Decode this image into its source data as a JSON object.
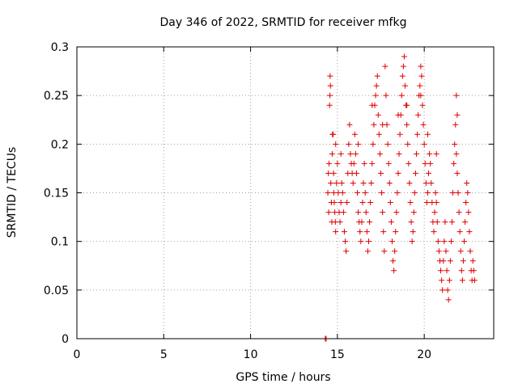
{
  "colors": {
    "series": "#e00000",
    "axis": "#000000",
    "grid": "#a0a0a0"
  },
  "chart_data": {
    "type": "scatter",
    "title": "Day 346 of 2022, SRMTID for receiver mfkg",
    "xlabel": "GPS time / hours",
    "ylabel": "SRMTID / TECUs",
    "xlim": [
      0,
      24
    ],
    "ylim": [
      0,
      0.3
    ],
    "xticks": [
      0,
      5,
      10,
      15,
      20
    ],
    "xtick_labels": [
      "0",
      "5",
      "10",
      "15",
      "20"
    ],
    "yticks": [
      0,
      0.05,
      0.1,
      0.15,
      0.2,
      0.25,
      0.3
    ],
    "ytick_labels": [
      "0",
      "0.05",
      "0.1",
      "0.15",
      "0.2",
      "0.25",
      "0.3"
    ],
    "grid": true,
    "marker": "plus",
    "series": [
      {
        "name": "SRMTID",
        "points": [
          [
            14.3,
            0.0
          ],
          [
            14.35,
            0.0
          ],
          [
            14.45,
            0.15
          ],
          [
            14.48,
            0.17
          ],
          [
            14.5,
            0.13
          ],
          [
            14.52,
            0.18
          ],
          [
            14.55,
            0.24
          ],
          [
            14.57,
            0.25
          ],
          [
            14.58,
            0.27
          ],
          [
            14.6,
            0.26
          ],
          [
            14.62,
            0.16
          ],
          [
            14.65,
            0.14
          ],
          [
            14.68,
            0.12
          ],
          [
            14.7,
            0.19
          ],
          [
            14.72,
            0.21
          ],
          [
            14.75,
            0.21
          ],
          [
            14.78,
            0.17
          ],
          [
            14.8,
            0.15
          ],
          [
            14.82,
            0.14
          ],
          [
            14.85,
            0.13
          ],
          [
            14.88,
            0.12
          ],
          [
            14.9,
            0.11
          ],
          [
            14.95,
            0.16
          ],
          [
            15.0,
            0.18
          ],
          [
            15.05,
            0.15
          ],
          [
            15.1,
            0.13
          ],
          [
            15.15,
            0.12
          ],
          [
            15.2,
            0.14
          ],
          [
            15.25,
            0.16
          ],
          [
            15.3,
            0.15
          ],
          [
            15.35,
            0.13
          ],
          [
            15.4,
            0.11
          ],
          [
            15.45,
            0.1
          ],
          [
            15.5,
            0.09
          ],
          [
            15.55,
            0.14
          ],
          [
            15.6,
            0.17
          ],
          [
            15.65,
            0.2
          ],
          [
            15.7,
            0.22
          ],
          [
            15.75,
            0.19
          ],
          [
            15.8,
            0.18
          ],
          [
            15.85,
            0.17
          ],
          [
            15.9,
            0.16
          ],
          [
            15.95,
            0.18
          ],
          [
            16.0,
            0.21
          ],
          [
            16.05,
            0.19
          ],
          [
            16.1,
            0.17
          ],
          [
            16.15,
            0.15
          ],
          [
            16.2,
            0.13
          ],
          [
            16.25,
            0.12
          ],
          [
            16.3,
            0.11
          ],
          [
            16.35,
            0.1
          ],
          [
            16.4,
            0.12
          ],
          [
            16.45,
            0.14
          ],
          [
            16.5,
            0.16
          ],
          [
            16.55,
            0.18
          ],
          [
            16.6,
            0.15
          ],
          [
            16.65,
            0.13
          ],
          [
            16.7,
            0.11
          ],
          [
            16.75,
            0.09
          ],
          [
            16.8,
            0.1
          ],
          [
            16.85,
            0.12
          ],
          [
            16.9,
            0.14
          ],
          [
            16.95,
            0.16
          ],
          [
            17.0,
            0.18
          ],
          [
            17.05,
            0.2
          ],
          [
            17.1,
            0.22
          ],
          [
            17.15,
            0.24
          ],
          [
            17.2,
            0.25
          ],
          [
            17.25,
            0.26
          ],
          [
            17.3,
            0.27
          ],
          [
            17.35,
            0.23
          ],
          [
            17.4,
            0.21
          ],
          [
            17.45,
            0.19
          ],
          [
            17.5,
            0.17
          ],
          [
            17.55,
            0.15
          ],
          [
            17.6,
            0.13
          ],
          [
            17.65,
            0.11
          ],
          [
            17.7,
            0.09
          ],
          [
            17.75,
            0.28
          ],
          [
            17.8,
            0.25
          ],
          [
            17.85,
            0.22
          ],
          [
            17.9,
            0.2
          ],
          [
            17.95,
            0.18
          ],
          [
            18.0,
            0.16
          ],
          [
            18.05,
            0.14
          ],
          [
            18.1,
            0.12
          ],
          [
            18.15,
            0.1
          ],
          [
            18.2,
            0.08
          ],
          [
            18.25,
            0.07
          ],
          [
            18.3,
            0.09
          ],
          [
            18.35,
            0.11
          ],
          [
            18.4,
            0.13
          ],
          [
            18.45,
            0.15
          ],
          [
            18.5,
            0.17
          ],
          [
            18.55,
            0.19
          ],
          [
            18.6,
            0.21
          ],
          [
            18.65,
            0.23
          ],
          [
            18.7,
            0.25
          ],
          [
            18.75,
            0.27
          ],
          [
            18.8,
            0.28
          ],
          [
            18.85,
            0.29
          ],
          [
            18.9,
            0.26
          ],
          [
            18.95,
            0.24
          ],
          [
            19.0,
            0.22
          ],
          [
            19.05,
            0.2
          ],
          [
            19.1,
            0.18
          ],
          [
            19.15,
            0.16
          ],
          [
            19.2,
            0.14
          ],
          [
            19.25,
            0.12
          ],
          [
            19.3,
            0.1
          ],
          [
            19.35,
            0.11
          ],
          [
            19.4,
            0.13
          ],
          [
            19.45,
            0.15
          ],
          [
            19.5,
            0.17
          ],
          [
            19.55,
            0.19
          ],
          [
            19.6,
            0.21
          ],
          [
            19.65,
            0.23
          ],
          [
            19.7,
            0.25
          ],
          [
            19.75,
            0.26
          ],
          [
            19.8,
            0.28
          ],
          [
            19.85,
            0.27
          ],
          [
            19.9,
            0.24
          ],
          [
            19.95,
            0.22
          ],
          [
            20.0,
            0.2
          ],
          [
            20.05,
            0.18
          ],
          [
            20.1,
            0.16
          ],
          [
            20.15,
            0.14
          ],
          [
            20.2,
            0.15
          ],
          [
            20.25,
            0.17
          ],
          [
            20.3,
            0.19
          ],
          [
            20.35,
            0.18
          ],
          [
            20.4,
            0.16
          ],
          [
            20.45,
            0.14
          ],
          [
            20.5,
            0.12
          ],
          [
            20.55,
            0.11
          ],
          [
            20.6,
            0.13
          ],
          [
            20.65,
            0.15
          ],
          [
            20.7,
            0.14
          ],
          [
            20.75,
            0.12
          ],
          [
            20.8,
            0.1
          ],
          [
            20.85,
            0.09
          ],
          [
            20.9,
            0.08
          ],
          [
            20.95,
            0.07
          ],
          [
            21.0,
            0.06
          ],
          [
            21.05,
            0.05
          ],
          [
            21.1,
            0.08
          ],
          [
            21.15,
            0.1
          ],
          [
            21.2,
            0.12
          ],
          [
            21.25,
            0.09
          ],
          [
            21.3,
            0.07
          ],
          [
            21.35,
            0.05
          ],
          [
            21.4,
            0.04
          ],
          [
            21.45,
            0.06
          ],
          [
            21.5,
            0.08
          ],
          [
            21.55,
            0.1
          ],
          [
            21.6,
            0.12
          ],
          [
            21.65,
            0.15
          ],
          [
            21.7,
            0.18
          ],
          [
            21.75,
            0.2
          ],
          [
            21.8,
            0.22
          ],
          [
            21.85,
            0.19
          ],
          [
            21.9,
            0.17
          ],
          [
            21.95,
            0.15
          ],
          [
            22.0,
            0.13
          ],
          [
            22.05,
            0.11
          ],
          [
            22.1,
            0.09
          ],
          [
            22.15,
            0.07
          ],
          [
            22.2,
            0.06
          ],
          [
            22.25,
            0.08
          ],
          [
            22.3,
            0.1
          ],
          [
            22.35,
            0.12
          ],
          [
            22.4,
            0.14
          ],
          [
            22.45,
            0.16
          ],
          [
            22.5,
            0.15
          ],
          [
            22.55,
            0.13
          ],
          [
            22.6,
            0.11
          ],
          [
            22.65,
            0.09
          ],
          [
            22.7,
            0.07
          ],
          [
            22.75,
            0.06
          ],
          [
            22.8,
            0.08
          ],
          [
            22.85,
            0.07
          ],
          [
            22.9,
            0.06
          ],
          [
            21.9,
            0.23
          ],
          [
            21.85,
            0.25
          ],
          [
            20.7,
            0.19
          ],
          [
            19.0,
            0.24
          ],
          [
            17.6,
            0.22
          ],
          [
            16.2,
            0.2
          ],
          [
            15.2,
            0.19
          ],
          [
            14.9,
            0.2
          ],
          [
            18.5,
            0.23
          ],
          [
            17.0,
            0.24
          ],
          [
            19.8,
            0.25
          ],
          [
            20.2,
            0.21
          ]
        ]
      }
    ]
  }
}
